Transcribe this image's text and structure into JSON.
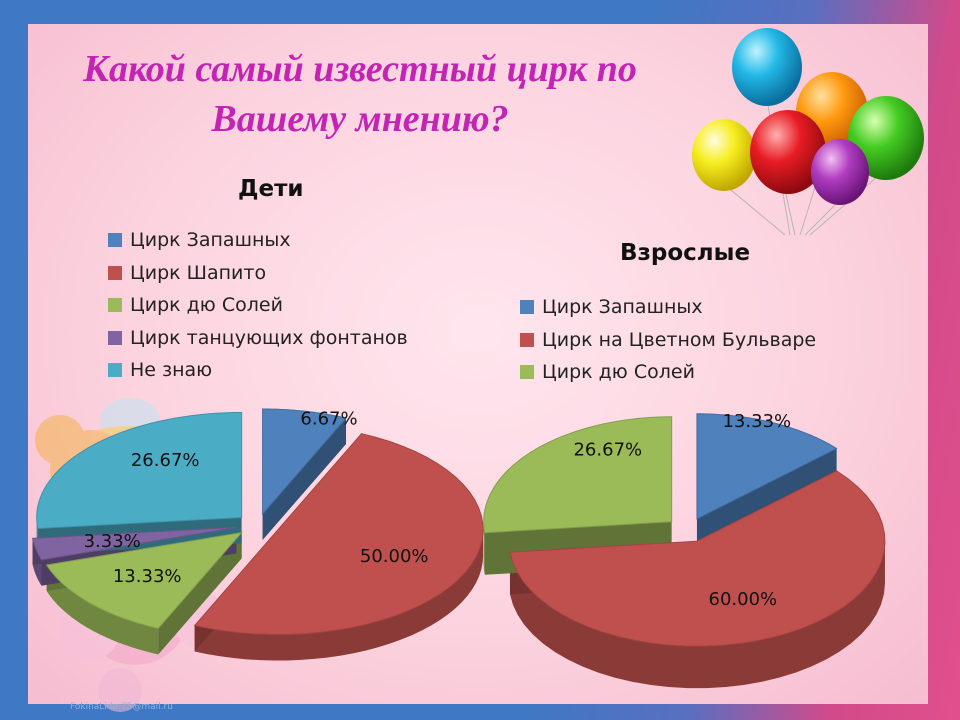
{
  "slide": {
    "title_line1": "Какой самый известный цирк по",
    "title_line2": "Вашему мнению?",
    "footer": "FokinaLida.75@mail.ru"
  },
  "chart_data": [
    {
      "type": "pie",
      "title": "Дети",
      "categories": [
        "Цирк Запашных",
        "Цирк Шапито",
        "Цирк дю Солей",
        "Цирк танцующих фонтанов",
        "Не знаю"
      ],
      "values": [
        6.67,
        50.0,
        13.33,
        3.33,
        26.67
      ],
      "labels": [
        "6.67%",
        "50.00%",
        "13.33%",
        "3.33%",
        "26.67%"
      ],
      "colors": [
        "#4f81bd",
        "#c0504d",
        "#9bbb59",
        "#8064a2",
        "#4bacc6"
      ],
      "exploded": true,
      "legend_position": "top-left"
    },
    {
      "type": "pie",
      "title": "Взрослые",
      "categories": [
        "Цирк Запашных",
        "Цирк на Цветном Бульваре",
        "Цирк дю Солей"
      ],
      "values": [
        13.33,
        60.0,
        26.67
      ],
      "labels": [
        "13.33%",
        "60.00%",
        "26.67%"
      ],
      "colors": [
        "#4f81bd",
        "#c0504d",
        "#9bbb59"
      ],
      "exploded": true,
      "legend_position": "top"
    }
  ]
}
